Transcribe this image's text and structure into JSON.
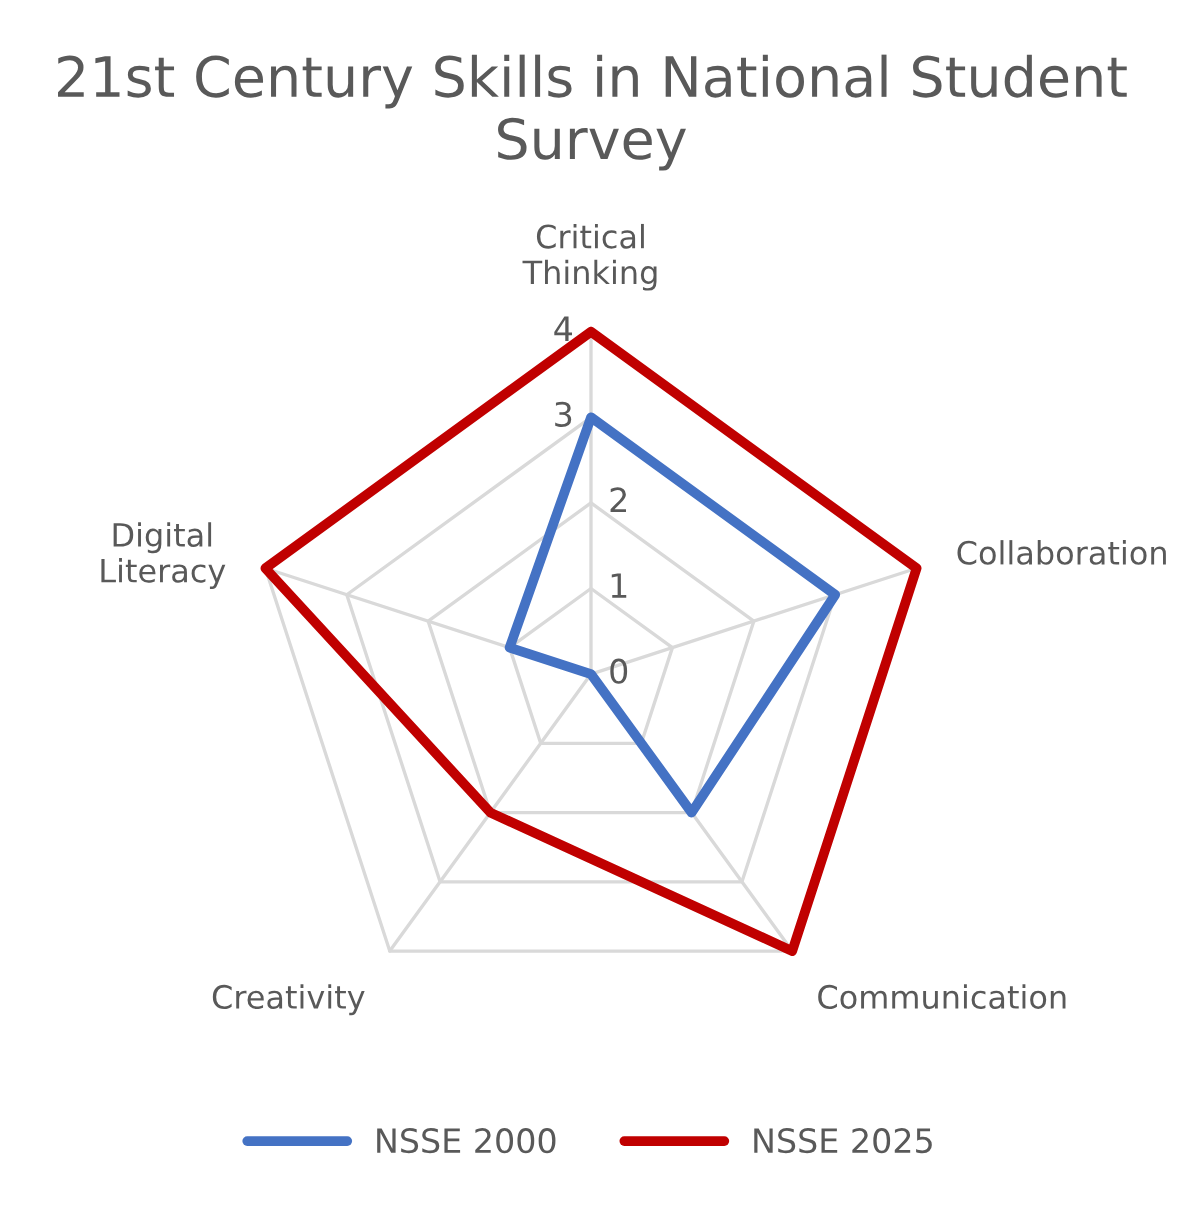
{
  "chart_data": {
    "type": "radar",
    "title": "21st Century Skills in National Student Survey",
    "categories": [
      "Critical Thinking",
      "Collaboration",
      "Communication",
      "Creativity",
      "Digital Literacy"
    ],
    "series": [
      {
        "name": "NSSE 2000",
        "color": "#4472c4",
        "values": [
          3,
          3,
          2,
          0,
          1
        ]
      },
      {
        "name": "NSSE 2025",
        "color": "#c00000",
        "values": [
          4,
          4,
          4,
          2,
          4
        ]
      }
    ],
    "ylim": [
      0,
      4
    ],
    "yticks": [
      0,
      1,
      2,
      3,
      4
    ],
    "grid": true,
    "legend": "bottom"
  }
}
